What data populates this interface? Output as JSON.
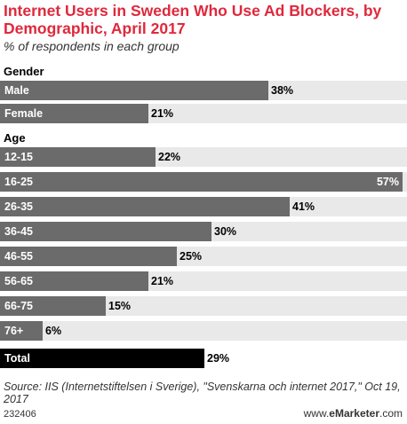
{
  "colors": {
    "title": "#e0283c",
    "bar": "#6b6b6b",
    "total_bar": "#000000",
    "row_background": "#e9e9e9"
  },
  "chart_data": {
    "type": "bar",
    "orientation": "horizontal",
    "title": "Internet Users in Sweden Who Use Ad Blockers, by Demographic, April 2017",
    "subtitle": "% of respondents in each group",
    "value_suffix": "%",
    "xlim": [
      0,
      57
    ],
    "groups": [
      {
        "label": "Gender",
        "rows": [
          {
            "category": "Male",
            "value": 38,
            "label": "38%"
          },
          {
            "category": "Female",
            "value": 21,
            "label": "21%"
          }
        ]
      },
      {
        "label": "Age",
        "rows": [
          {
            "category": "12-15",
            "value": 22,
            "label": "22%"
          },
          {
            "category": "16-25",
            "value": 57,
            "label": "57%"
          },
          {
            "category": "26-35",
            "value": 41,
            "label": "41%"
          },
          {
            "category": "36-45",
            "value": 30,
            "label": "30%"
          },
          {
            "category": "46-55",
            "value": 25,
            "label": "25%"
          },
          {
            "category": "56-65",
            "value": 21,
            "label": "21%"
          },
          {
            "category": "66-75",
            "value": 15,
            "label": "15%"
          },
          {
            "category": "76+",
            "value": 6,
            "label": "6%"
          }
        ]
      }
    ],
    "total": {
      "category": "Total",
      "value": 29,
      "label": "29%"
    }
  },
  "source": "Source: IIS (Internetstiftelsen i Sverige), \"Svenskarna och internet 2017,\" Oct 19, 2017",
  "footer": {
    "chart_id": "232406",
    "brand_prefix": "www.",
    "brand_name": "eMarketer",
    "brand_suffix": ".com"
  }
}
